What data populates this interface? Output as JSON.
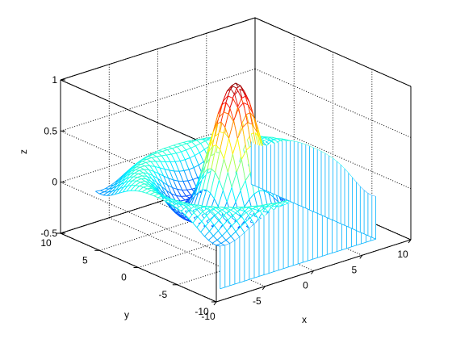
{
  "chart_data": {
    "type": "surface-3d",
    "function": "z = sin(r)/r, r = sqrt(x^2 + y^2)",
    "style": "meshz",
    "colormap": "jet",
    "grid": true,
    "xlim": [
      -10,
      10
    ],
    "ylim": [
      -10,
      10
    ],
    "zlim": [
      -0.5,
      1
    ],
    "x_ticks": [
      -10,
      -5,
      0,
      5,
      10
    ],
    "y_ticks": [
      -10,
      -5,
      0,
      5,
      10
    ],
    "z_ticks": [
      -0.5,
      0,
      0.5,
      1
    ],
    "x_tick_labels": [
      "-10",
      "-5",
      "0",
      "5",
      "10"
    ],
    "y_tick_labels": [
      "-10",
      "-5",
      "0",
      "5",
      "10"
    ],
    "z_tick_labels": [
      "-0.5",
      "0",
      "0.5",
      "1"
    ],
    "xlabel": "x",
    "ylabel": "y",
    "zlabel": "z",
    "grid_samples": [
      -8,
      -7.5,
      -7,
      -6.5,
      -6,
      -5.5,
      -5,
      -4.5,
      -4,
      -3.5,
      -3,
      -2.5,
      -2,
      -1.5,
      -1,
      -0.5,
      0,
      0.5,
      1,
      1.5,
      2,
      2.5,
      3,
      3.5,
      4,
      4.5,
      5,
      5.5,
      6,
      6.5,
      7,
      7.5,
      8
    ],
    "curtain_base_z": -0.5,
    "peak_z": 1
  }
}
